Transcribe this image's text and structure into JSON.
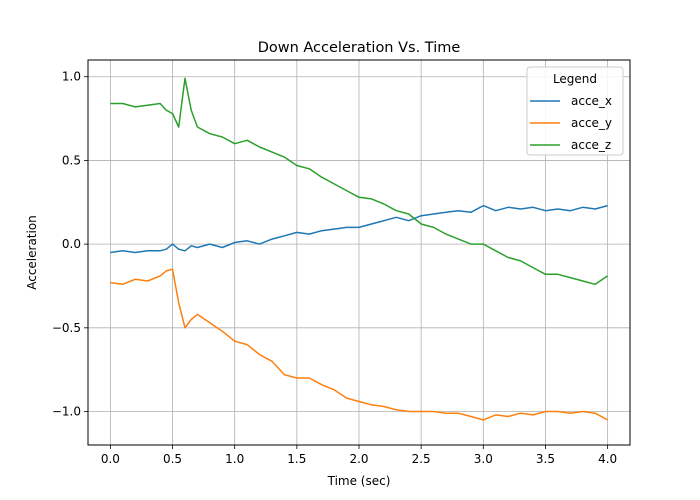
{
  "chart_data": {
    "type": "line",
    "title": "Down Acceleration Vs. Time",
    "xlabel": "Time (sec)",
    "ylabel": "Acceleration",
    "xlim": [
      -0.18,
      4.18
    ],
    "ylim": [
      -1.2,
      1.1
    ],
    "xticks": [
      0.0,
      0.5,
      1.0,
      1.5,
      2.0,
      2.5,
      3.0,
      3.5,
      4.0
    ],
    "xtick_labels": [
      "0.0",
      "0.5",
      "1.0",
      "1.5",
      "2.0",
      "2.5",
      "3.0",
      "3.5",
      "4.0"
    ],
    "yticks": [
      -1.0,
      -0.5,
      0.0,
      0.5,
      1.0
    ],
    "ytick_labels": [
      "−1.0",
      "−0.5",
      "0.0",
      "0.5",
      "1.0"
    ],
    "grid": true,
    "legend": {
      "title": "Legend",
      "placement": "top-right"
    },
    "x": [
      0.0,
      0.1,
      0.2,
      0.3,
      0.4,
      0.45,
      0.5,
      0.55,
      0.6,
      0.65,
      0.7,
      0.8,
      0.9,
      1.0,
      1.1,
      1.2,
      1.3,
      1.4,
      1.5,
      1.6,
      1.7,
      1.8,
      1.9,
      2.0,
      2.1,
      2.2,
      2.3,
      2.4,
      2.5,
      2.6,
      2.7,
      2.8,
      2.9,
      3.0,
      3.1,
      3.2,
      3.3,
      3.4,
      3.5,
      3.6,
      3.7,
      3.8,
      3.9,
      4.0
    ],
    "series": [
      {
        "name": "acce_x",
        "color": "#1f77b4",
        "values": [
          -0.05,
          -0.04,
          -0.05,
          -0.04,
          -0.04,
          -0.03,
          0.0,
          -0.03,
          -0.04,
          -0.01,
          -0.02,
          0.0,
          -0.02,
          0.01,
          0.02,
          0.0,
          0.03,
          0.05,
          0.07,
          0.06,
          0.08,
          0.09,
          0.1,
          0.1,
          0.12,
          0.14,
          0.16,
          0.14,
          0.17,
          0.18,
          0.19,
          0.2,
          0.19,
          0.23,
          0.2,
          0.22,
          0.21,
          0.22,
          0.2,
          0.21,
          0.2,
          0.22,
          0.21,
          0.23
        ]
      },
      {
        "name": "acce_y",
        "color": "#ff7f0e",
        "values": [
          -0.23,
          -0.24,
          -0.21,
          -0.22,
          -0.19,
          -0.16,
          -0.15,
          -0.35,
          -0.5,
          -0.45,
          -0.42,
          -0.47,
          -0.52,
          -0.58,
          -0.6,
          -0.66,
          -0.7,
          -0.78,
          -0.8,
          -0.8,
          -0.84,
          -0.87,
          -0.92,
          -0.94,
          -0.96,
          -0.97,
          -0.99,
          -1.0,
          -1.0,
          -1.0,
          -1.01,
          -1.01,
          -1.03,
          -1.05,
          -1.02,
          -1.03,
          -1.01,
          -1.02,
          -1.0,
          -1.0,
          -1.01,
          -1.0,
          -1.01,
          -1.05
        ]
      },
      {
        "name": "acce_z",
        "color": "#2ca02c",
        "values": [
          0.84,
          0.84,
          0.82,
          0.83,
          0.84,
          0.8,
          0.78,
          0.7,
          0.99,
          0.8,
          0.7,
          0.66,
          0.64,
          0.6,
          0.62,
          0.58,
          0.55,
          0.52,
          0.47,
          0.45,
          0.4,
          0.36,
          0.32,
          0.28,
          0.27,
          0.24,
          0.2,
          0.18,
          0.12,
          0.1,
          0.06,
          0.03,
          0.0,
          0.0,
          -0.04,
          -0.08,
          -0.1,
          -0.14,
          -0.18,
          -0.18,
          -0.2,
          -0.22,
          -0.24,
          -0.19
        ]
      }
    ]
  }
}
